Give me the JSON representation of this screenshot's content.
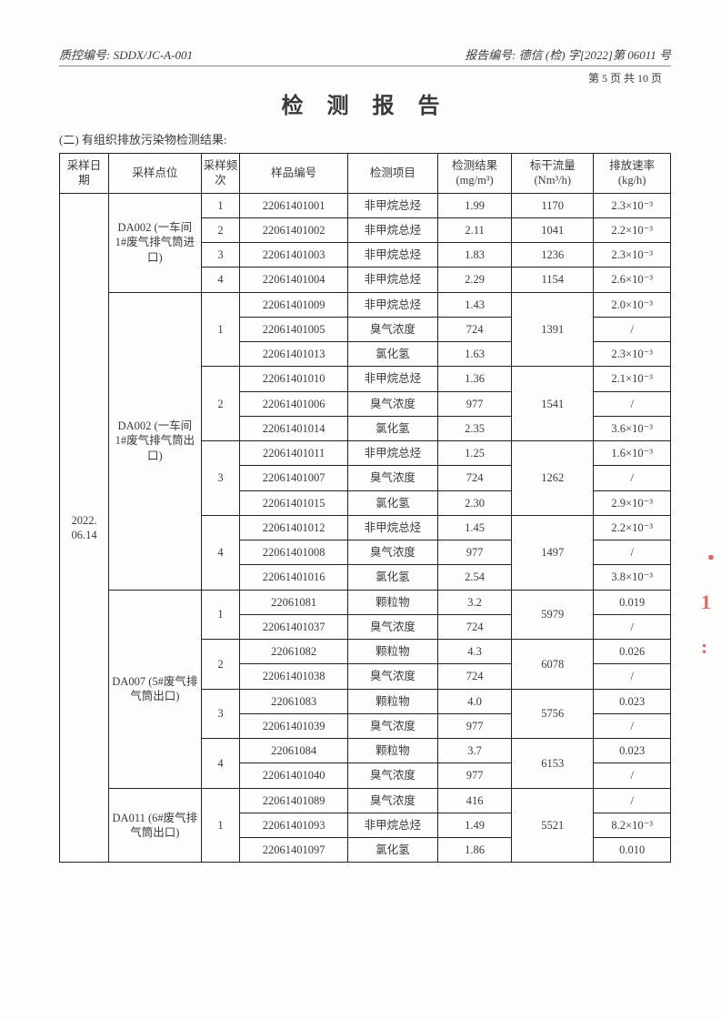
{
  "header": {
    "left": "质控编号: SDDX/JC-A-001",
    "right": "报告编号: 德信 (检) 字[2022]第 06011 号",
    "page": "第 5 页 共 10 页"
  },
  "title": "检 测 报 告",
  "subtitle": "(二) 有组织排放污染物检测结果:",
  "columns": {
    "date": "采样日期",
    "point": "采样点位",
    "freq": "采样频次",
    "sample": "样品编号",
    "item": "检测项目",
    "result_l1": "检测结果",
    "result_l2": "(mg/m³)",
    "flow_l1": "标干流量",
    "flow_l2": "(Nm³/h)",
    "rate_l1": "排放速率",
    "rate_l2": "(kg/h)"
  },
  "date_cell": "2022.\n06.14",
  "g1": {
    "point": "DA002 (一车间 1#废气排气筒进口)",
    "r1": {
      "freq": "1",
      "sample": "22061401001",
      "item": "非甲烷总烃",
      "result": "1.99",
      "flow": "1170",
      "rate": "2.3×10⁻³"
    },
    "r2": {
      "freq": "2",
      "sample": "22061401002",
      "item": "非甲烷总烃",
      "result": "2.11",
      "flow": "1041",
      "rate": "2.2×10⁻³"
    },
    "r3": {
      "freq": "3",
      "sample": "22061401003",
      "item": "非甲烷总烃",
      "result": "1.83",
      "flow": "1236",
      "rate": "2.3×10⁻³"
    },
    "r4": {
      "freq": "4",
      "sample": "22061401004",
      "item": "非甲烷总烃",
      "result": "2.29",
      "flow": "1154",
      "rate": "2.6×10⁻³"
    }
  },
  "g2": {
    "point": "DA002 (一车间 1#废气排气筒出口)",
    "f1": {
      "flow": "1391",
      "a": {
        "sample": "22061401009",
        "item": "非甲烷总烃",
        "result": "1.43",
        "rate": "2.0×10⁻³"
      },
      "b": {
        "sample": "22061401005",
        "item": "臭气浓度",
        "result": "724",
        "rate": "/"
      },
      "c": {
        "sample": "22061401013",
        "item": "氯化氢",
        "result": "1.63",
        "rate": "2.3×10⁻³"
      }
    },
    "f2": {
      "flow": "1541",
      "a": {
        "sample": "22061401010",
        "item": "非甲烷总烃",
        "result": "1.36",
        "rate": "2.1×10⁻³"
      },
      "b": {
        "sample": "22061401006",
        "item": "臭气浓度",
        "result": "977",
        "rate": "/"
      },
      "c": {
        "sample": "22061401014",
        "item": "氯化氢",
        "result": "2.35",
        "rate": "3.6×10⁻³"
      }
    },
    "f3": {
      "flow": "1262",
      "a": {
        "sample": "22061401011",
        "item": "非甲烷总烃",
        "result": "1.25",
        "rate": "1.6×10⁻³"
      },
      "b": {
        "sample": "22061401007",
        "item": "臭气浓度",
        "result": "724",
        "rate": "/"
      },
      "c": {
        "sample": "22061401015",
        "item": "氯化氢",
        "result": "2.30",
        "rate": "2.9×10⁻³"
      }
    },
    "f4": {
      "flow": "1497",
      "a": {
        "sample": "22061401012",
        "item": "非甲烷总烃",
        "result": "1.45",
        "rate": "2.2×10⁻³"
      },
      "b": {
        "sample": "22061401008",
        "item": "臭气浓度",
        "result": "977",
        "rate": "/"
      },
      "c": {
        "sample": "22061401016",
        "item": "氯化氢",
        "result": "2.54",
        "rate": "3.8×10⁻³"
      }
    }
  },
  "g3": {
    "point": "DA007 (5#废气排气筒出口)",
    "f1": {
      "flow": "5979",
      "a": {
        "sample": "22061081",
        "item": "颗粒物",
        "result": "3.2",
        "rate": "0.019"
      },
      "b": {
        "sample": "22061401037",
        "item": "臭气浓度",
        "result": "724",
        "rate": "/"
      }
    },
    "f2": {
      "flow": "6078",
      "a": {
        "sample": "22061082",
        "item": "颗粒物",
        "result": "4.3",
        "rate": "0.026"
      },
      "b": {
        "sample": "22061401038",
        "item": "臭气浓度",
        "result": "724",
        "rate": "/"
      }
    },
    "f3": {
      "flow": "5756",
      "a": {
        "sample": "22061083",
        "item": "颗粒物",
        "result": "4.0",
        "rate": "0.023"
      },
      "b": {
        "sample": "22061401039",
        "item": "臭气浓度",
        "result": "977",
        "rate": "/"
      }
    },
    "f4": {
      "flow": "6153",
      "a": {
        "sample": "22061084",
        "item": "颗粒物",
        "result": "3.7",
        "rate": "0.023"
      },
      "b": {
        "sample": "22061401040",
        "item": "臭气浓度",
        "result": "977",
        "rate": "/"
      }
    }
  },
  "g4": {
    "point": "DA011 (6#废气排气筒出口)",
    "f1": {
      "flow": "5521",
      "a": {
        "sample": "22061401089",
        "item": "臭气浓度",
        "result": "416",
        "rate": "/"
      },
      "b": {
        "sample": "22061401093",
        "item": "非甲烷总烃",
        "result": "1.49",
        "rate": "8.2×10⁻³"
      },
      "c": {
        "sample": "22061401097",
        "item": "氯化氢",
        "result": "1.86",
        "rate": "0.010"
      }
    }
  }
}
